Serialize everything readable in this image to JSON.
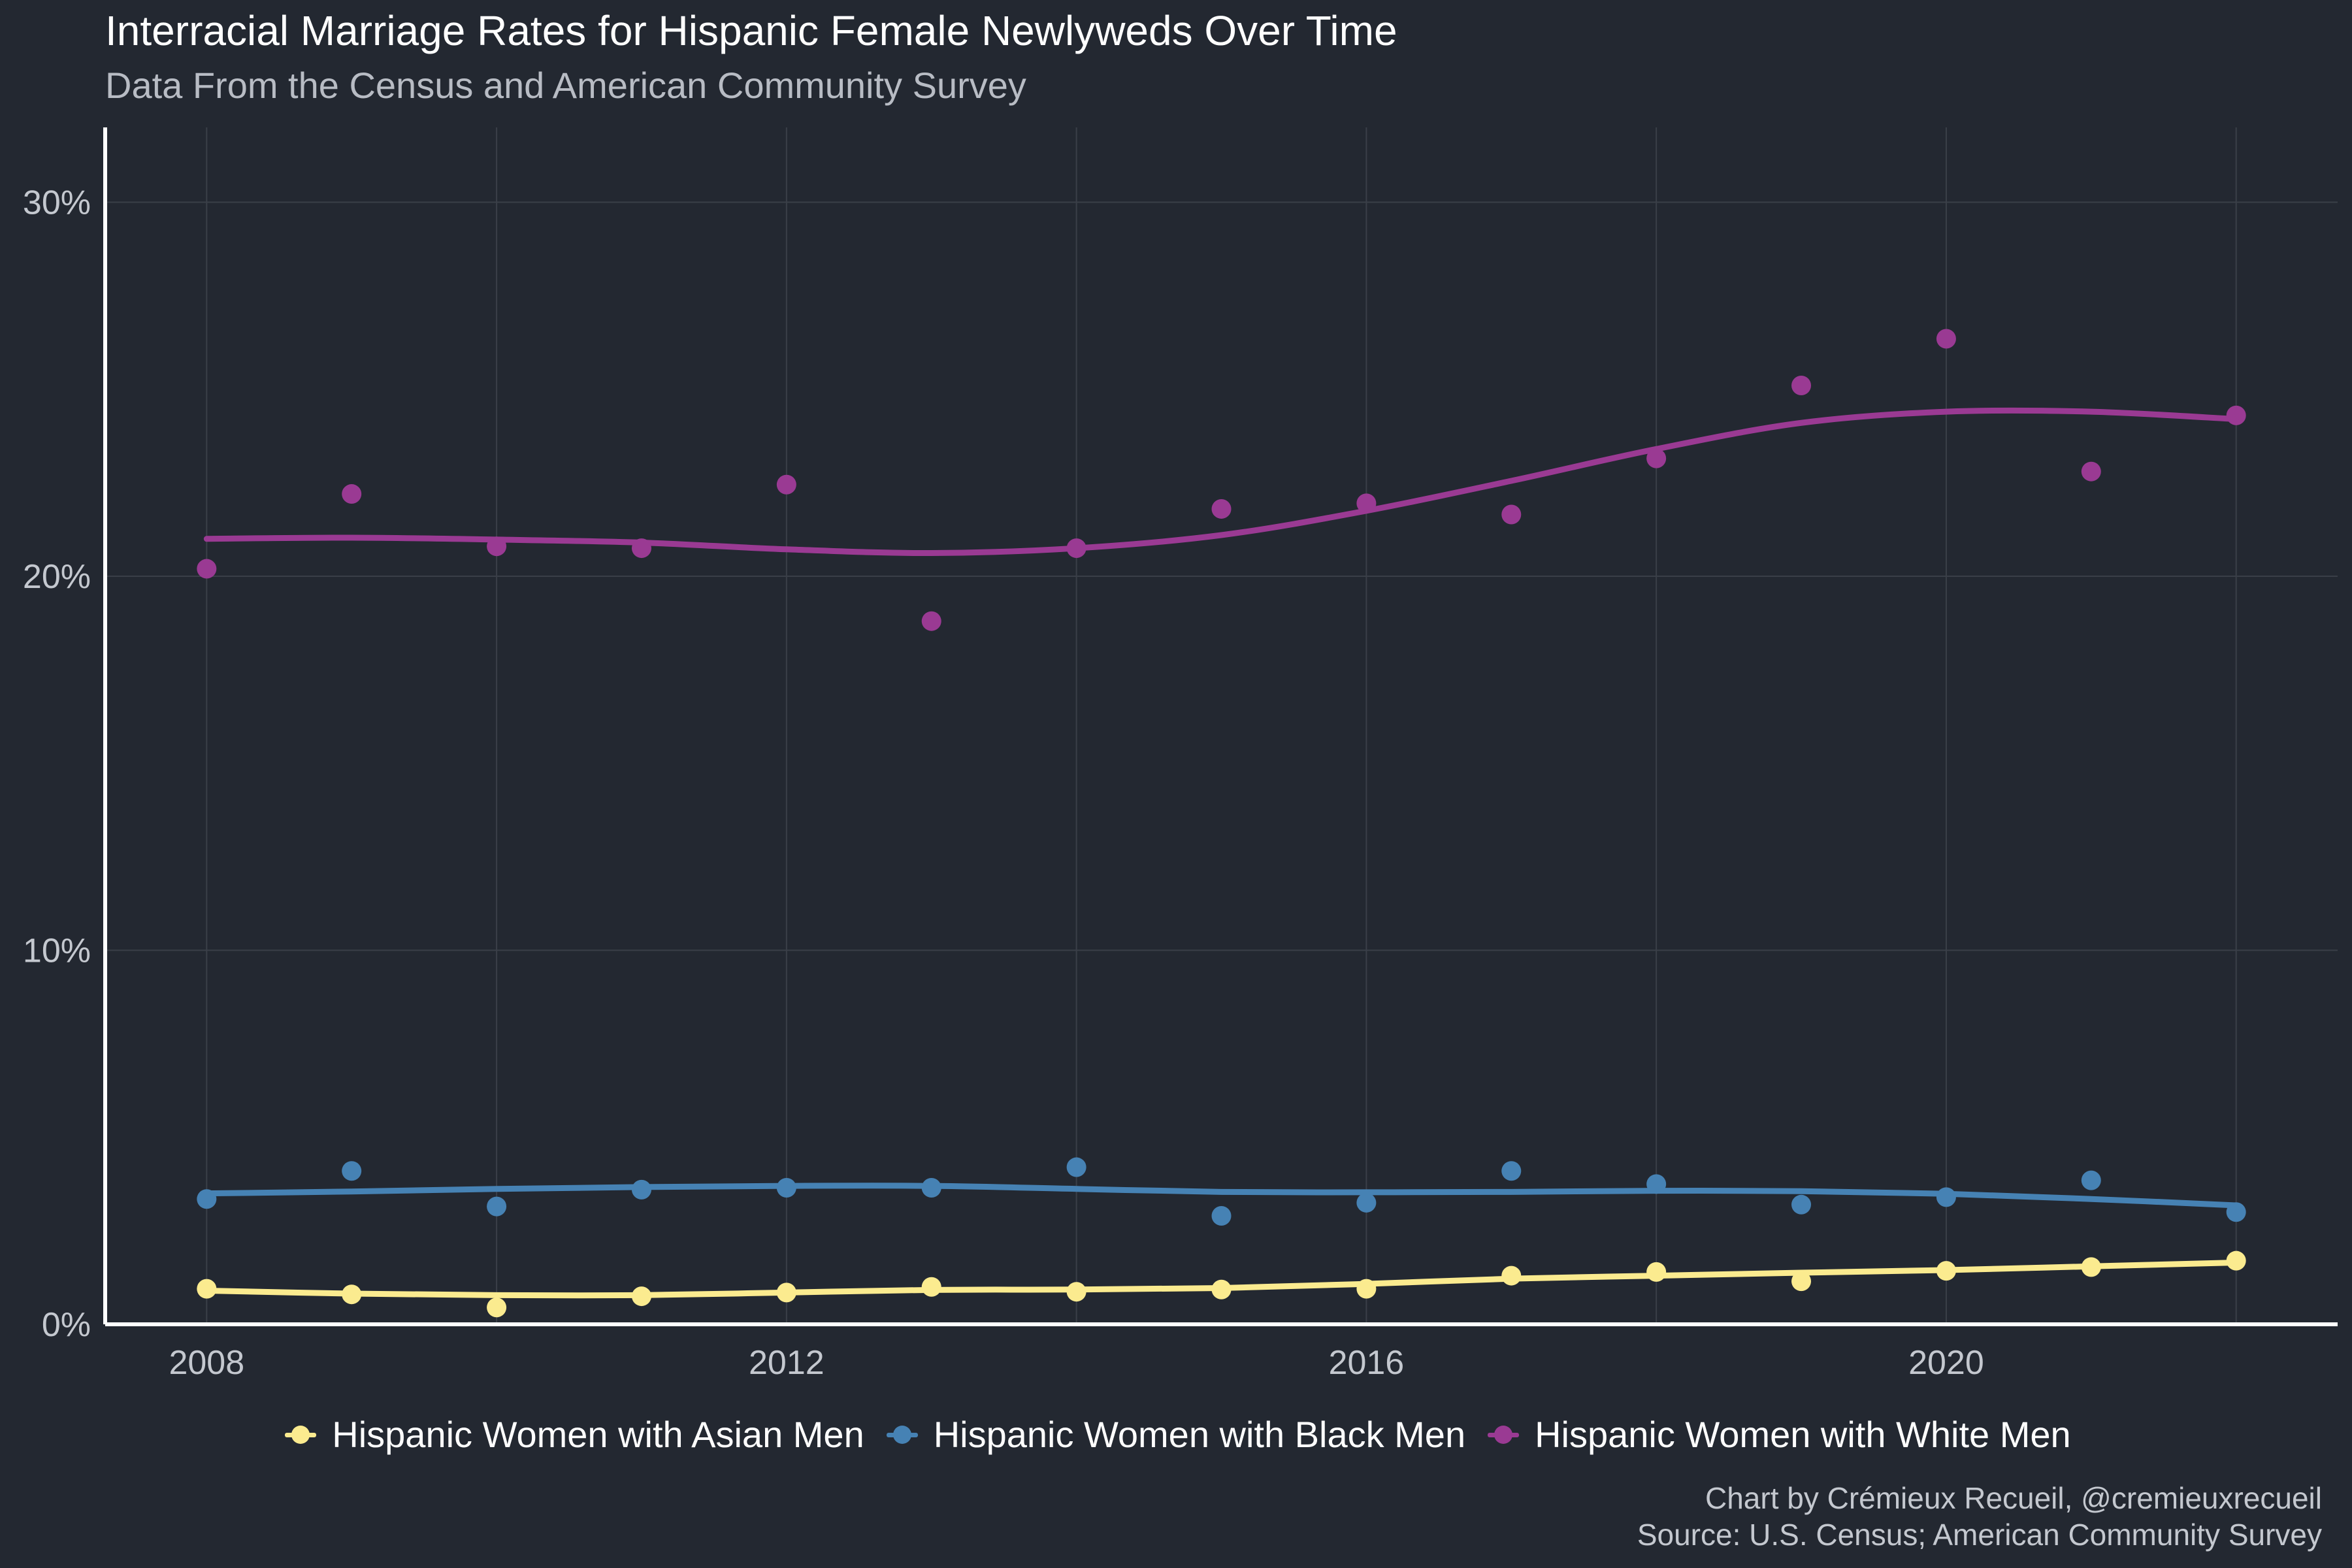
{
  "title": "Interracial Marriage Rates for Hispanic Female Newlyweds Over Time",
  "subtitle": "Data From the Census and American Community Survey",
  "caption": {
    "line1": "Chart by Crémieux Recueil, @cremieuxrecueil",
    "line2": "Source: U.S. Census; American Community Survey"
  },
  "colors": {
    "background": "#232831",
    "grid": "#3a3f48",
    "axis": "#ffffff",
    "asian": "#fbeb8f",
    "black": "#4682b4",
    "white": "#9a3a93"
  },
  "chart_data": {
    "type": "scatter",
    "title": "Interracial Marriage Rates for Hispanic Female Newlyweds Over Time",
    "xlabel": "",
    "ylabel": "",
    "xlim": [
      2007.3,
      2022.7
    ],
    "ylim": [
      0,
      0.32
    ],
    "x_ticks": [
      2008,
      2012,
      2016,
      2020
    ],
    "x_tick_labels": [
      "2008",
      "2012",
      "2016",
      "2020"
    ],
    "y_ticks": [
      0,
      0.1,
      0.2,
      0.3
    ],
    "y_tick_labels": [
      "0%",
      "10%",
      "20%",
      "30%"
    ],
    "grid": true,
    "legend_position": "bottom",
    "x": [
      2008,
      2009,
      2010,
      2011,
      2012,
      2013,
      2014,
      2015,
      2016,
      2017,
      2018,
      2019,
      2020,
      2021,
      2022
    ],
    "series": [
      {
        "name": "Hispanic Women with Asian Men",
        "color": "#fbeb8f",
        "values": [
          0.0095,
          0.008,
          0.0045,
          0.0075,
          0.0085,
          0.01,
          0.0087,
          0.0093,
          0.0095,
          0.013,
          0.014,
          0.0115,
          0.0143,
          0.0153,
          0.017
        ],
        "smooth": [
          0.009,
          0.0082,
          0.0078,
          0.0078,
          0.0085,
          0.0092,
          0.0093,
          0.0097,
          0.0108,
          0.0122,
          0.013,
          0.0138,
          0.0145,
          0.0155,
          0.0165
        ]
      },
      {
        "name": "Hispanic Women with Black Men",
        "color": "#4682b4",
        "values": [
          0.0335,
          0.041,
          0.0315,
          0.036,
          0.0365,
          0.0365,
          0.042,
          0.029,
          0.0325,
          0.041,
          0.0375,
          0.032,
          0.034,
          0.0385,
          0.03
        ],
        "smooth": [
          0.035,
          0.0355,
          0.0362,
          0.0367,
          0.037,
          0.037,
          0.0362,
          0.0354,
          0.0353,
          0.0354,
          0.0357,
          0.0356,
          0.0349,
          0.0335,
          0.0318
        ]
      },
      {
        "name": "Hispanic Women with White Men",
        "color": "#9a3a93",
        "values": [
          0.202,
          0.222,
          0.208,
          0.2075,
          0.2245,
          0.188,
          0.2075,
          0.218,
          0.2195,
          0.2165,
          0.2315,
          0.251,
          0.2635,
          0.228,
          0.243
        ],
        "smooth": [
          0.21,
          0.2103,
          0.2098,
          0.209,
          0.2072,
          0.2062,
          0.2075,
          0.211,
          0.2175,
          0.2255,
          0.234,
          0.241,
          0.244,
          0.244,
          0.242
        ]
      }
    ]
  }
}
